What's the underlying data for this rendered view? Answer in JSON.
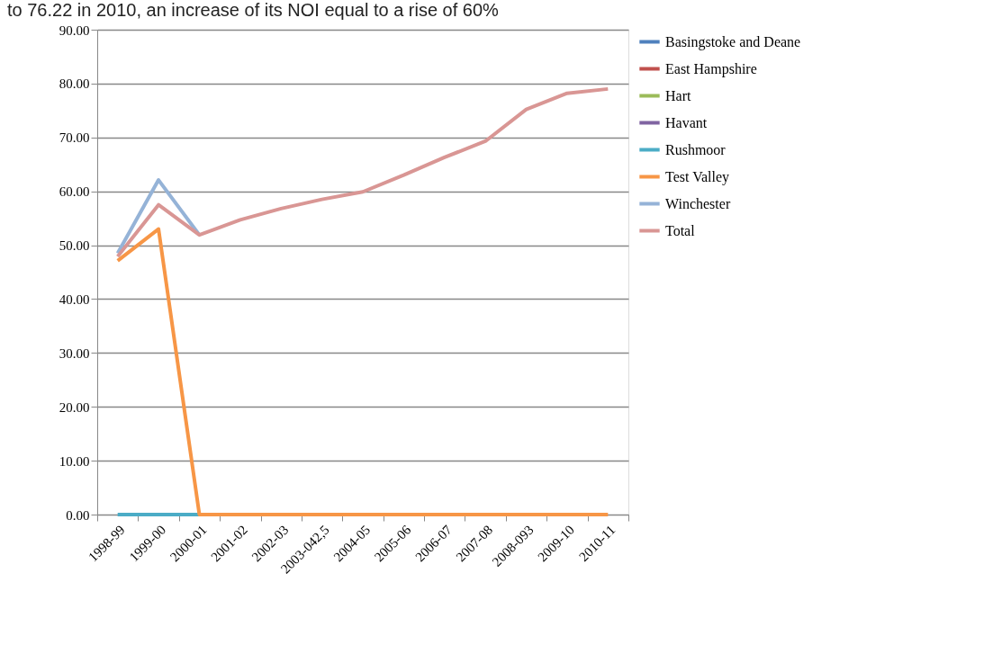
{
  "chart_data": {
    "type": "line",
    "annotations": [
      "to 76.22 in 2010, an increase of its NOI equal to a rise of 60%"
    ],
    "categories": [
      "1998-99",
      "1999-00",
      "2000-01",
      "2001-02",
      "2002-03",
      "2003-042,5",
      "2004-05",
      "2005-06",
      "2006-07",
      "2007-08",
      "2008-093",
      "2009-10",
      "2010-11"
    ],
    "series": [
      {
        "name": "Basingstoke and Deane",
        "color": "#4f81bd",
        "values": [
          null,
          null,
          null,
          null,
          null,
          null,
          null,
          null,
          null,
          null,
          null,
          null,
          null
        ]
      },
      {
        "name": "East Hampshire",
        "color": "#c0504d",
        "values": [
          null,
          null,
          null,
          null,
          null,
          null,
          null,
          null,
          null,
          null,
          null,
          null,
          null
        ]
      },
      {
        "name": "Hart",
        "color": "#9bbb59",
        "values": [
          null,
          null,
          null,
          null,
          null,
          null,
          null,
          null,
          null,
          null,
          null,
          null,
          null
        ]
      },
      {
        "name": "Havant",
        "color": "#8064a2",
        "values": [
          null,
          null,
          null,
          null,
          null,
          null,
          null,
          null,
          null,
          null,
          null,
          null,
          null
        ]
      },
      {
        "name": "Rushmoor",
        "color": "#4bacc6",
        "values": [
          0,
          0,
          0,
          null,
          null,
          null,
          null,
          null,
          null,
          null,
          null,
          null,
          null
        ]
      },
      {
        "name": "Test Valley",
        "color": "#f79646",
        "values": [
          47.1,
          53.0,
          0,
          0,
          0,
          0,
          0,
          0,
          0,
          0,
          0,
          0,
          0
        ]
      },
      {
        "name": "Winchester",
        "color": "#95b3d7",
        "values": [
          48.5,
          62.1,
          51.9,
          null,
          null,
          null,
          null,
          null,
          null,
          null,
          null,
          null,
          null
        ]
      },
      {
        "name": "Total",
        "color": "#d99694",
        "values": [
          47.9,
          57.5,
          51.9,
          54.7,
          56.8,
          58.5,
          59.9,
          63.0,
          66.3,
          69.3,
          75.2,
          78.2,
          79.0
        ]
      }
    ],
    "ylim": [
      0,
      90
    ],
    "yticks": [
      {
        "value": 0,
        "label": "0.00"
      },
      {
        "value": 10,
        "label": "10.00"
      },
      {
        "value": 20,
        "label": "20.00"
      },
      {
        "value": 30,
        "label": "30.00"
      },
      {
        "value": 40,
        "label": "40.00"
      },
      {
        "value": 50,
        "label": "50.00"
      },
      {
        "value": 60,
        "label": "60.00"
      },
      {
        "value": 70,
        "label": "70.00"
      },
      {
        "value": 80,
        "label": "80.00"
      },
      {
        "value": 90,
        "label": "90.00"
      }
    ],
    "grid": "y",
    "legend": "right",
    "line_style": "solid",
    "marker": "none"
  }
}
